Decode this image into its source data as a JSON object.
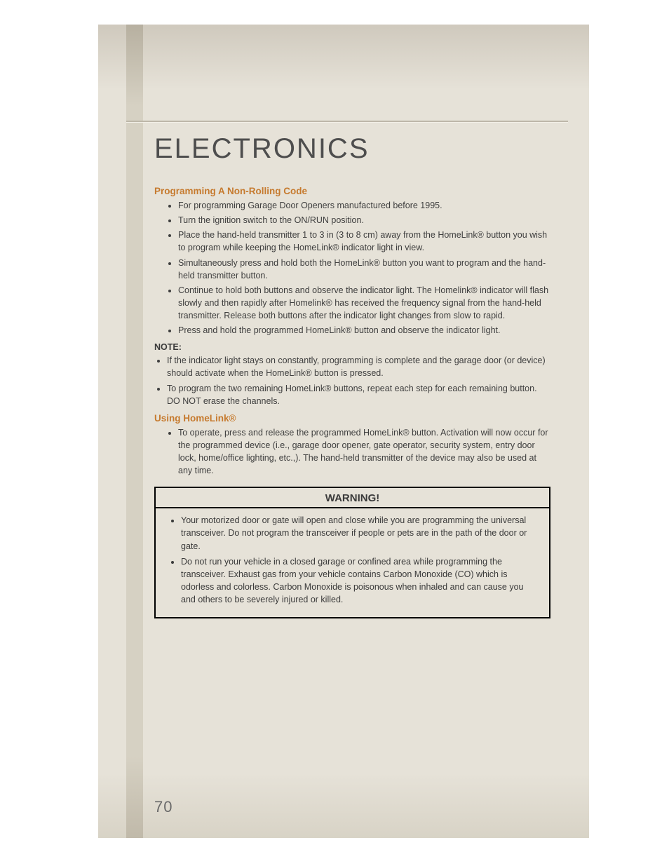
{
  "page": {
    "title": "ELECTRONICS",
    "number": "70"
  },
  "colors": {
    "accent": "#c67a2e",
    "text": "#3e3e3e",
    "page_bg_light": "#e6e2d8",
    "page_bg_dark": "#cfc9bd",
    "stripe": "#d6d1c3",
    "rule": "#bdb7a9"
  },
  "sections": {
    "prog": {
      "heading": "Programming A Non-Rolling Code",
      "items": [
        "For programming Garage Door Openers manufactured before 1995.",
        "Turn the ignition switch to the ON/RUN position.",
        "Place the hand-held transmitter 1 to 3 in (3 to 8 cm) away from the HomeLink® button you wish to program while keeping the HomeLink® indicator light in view.",
        "Simultaneously press and hold both the HomeLink® button you want to program and the hand-held transmitter button.",
        "Continue to hold both buttons and observe the indicator light. The Homelink® indicator will flash slowly and then rapidly after Homelink® has received the frequency signal from the hand-held transmitter. Release both buttons after the indicator light changes from slow to rapid.",
        "Press and hold the programmed HomeLink® button and observe the indicator light."
      ]
    },
    "note": {
      "heading": "NOTE:",
      "items": [
        "If the indicator light stays on constantly, programming is complete and the garage door (or device) should activate when the HomeLink® button is pressed.",
        "To program the two remaining HomeLink® buttons, repeat each step for each remaining button. DO NOT erase the channels."
      ]
    },
    "using": {
      "heading": "Using HomeLink®",
      "items": [
        "To operate, press and release the programmed HomeLink® button. Activation will now occur for the programmed device (i.e., garage door opener, gate operator, security system, entry door lock, home/office lighting, etc.,). The hand-held transmitter of the device may also be used at any time."
      ]
    },
    "warning": {
      "heading": "WARNING!",
      "items": [
        "Your motorized door or gate will open and close while you are programming the universal transceiver. Do not program the transceiver if people or pets are in the path of the door or gate.",
        "Do not run your vehicle in a closed garage or confined area while programming the transceiver. Exhaust gas from your vehicle contains Carbon Monoxide (CO) which is odorless and colorless. Carbon Monoxide is poisonous when inhaled and can cause you and others to be severely injured or killed."
      ]
    }
  }
}
